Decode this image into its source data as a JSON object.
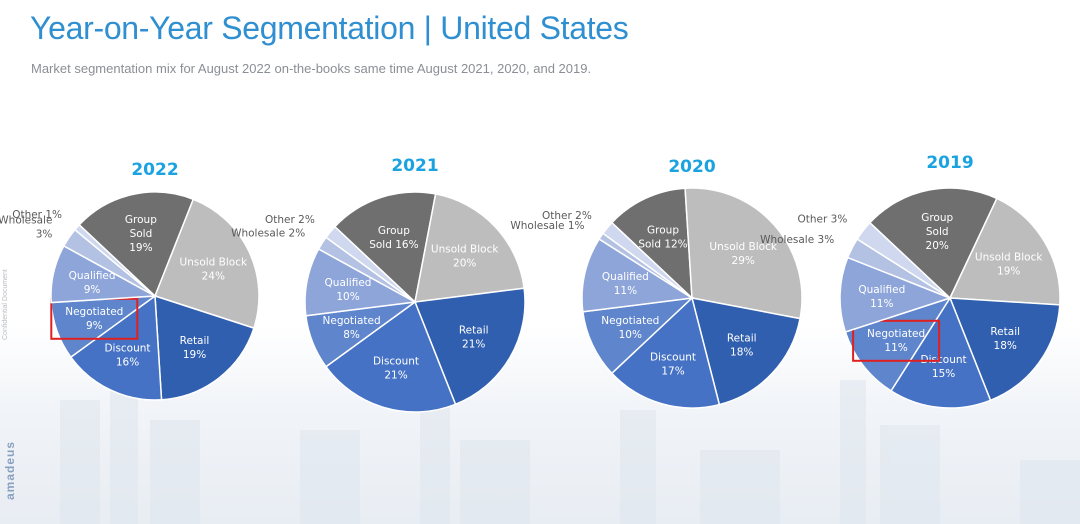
{
  "header": {
    "title": "Year-on-Year Segmentation | United States",
    "subtitle": "Market segmentation mix for August 2022 on-the-books same time August 2021, 2020, and 2019."
  },
  "side_note": "Confidential Document",
  "brand": "amadeus",
  "colors": {
    "title": "#2f8fd0",
    "year_label": "#1aa3e0",
    "highlight_box": "#e02020",
    "Group Sold": "#6f6f6f",
    "Unsold Block": "#bdbdbd",
    "Retail": "#2f5fae",
    "Discount": "#4572c4",
    "Negotiated": "#5f86cc",
    "Qualified": "#8ea5da",
    "Wholesale": "#b3c1e3",
    "Other": "#cfd8ee"
  },
  "chart_data": [
    {
      "type": "pie",
      "title": "2022",
      "highlight": "Negotiated",
      "slices": [
        {
          "label": "Group Sold",
          "display": "Group\nSold\n19%",
          "value": 19
        },
        {
          "label": "Unsold Block",
          "display": "Unsold Block\n24%",
          "value": 24
        },
        {
          "label": "Retail",
          "display": "Retail\n19%",
          "value": 19
        },
        {
          "label": "Discount",
          "display": "Discount\n16%",
          "value": 16
        },
        {
          "label": "Negotiated",
          "display": "Negotiated\n9%",
          "value": 9
        },
        {
          "label": "Qualified",
          "display": "Qualified\n9%",
          "value": 9
        },
        {
          "label": "Wholesale",
          "display": "Wholesale\n3%",
          "value": 3
        },
        {
          "label": "Other",
          "display": "Other 1%",
          "value": 1
        }
      ]
    },
    {
      "type": "pie",
      "title": "2021",
      "highlight": null,
      "slices": [
        {
          "label": "Group Sold",
          "display": "Group\nSold 16%",
          "value": 16
        },
        {
          "label": "Unsold Block",
          "display": "Unsold Block\n20%",
          "value": 20
        },
        {
          "label": "Retail",
          "display": "Retail\n21%",
          "value": 21
        },
        {
          "label": "Discount",
          "display": "Discount\n21%",
          "value": 21
        },
        {
          "label": "Negotiated",
          "display": "Negotiated\n8%",
          "value": 8
        },
        {
          "label": "Qualified",
          "display": "Qualified\n10%",
          "value": 10
        },
        {
          "label": "Wholesale",
          "display": "Wholesale 2%",
          "value": 2
        },
        {
          "label": "Other",
          "display": "Other 2%",
          "value": 2
        }
      ]
    },
    {
      "type": "pie",
      "title": "2020",
      "highlight": null,
      "slices": [
        {
          "label": "Group Sold",
          "display": "Group\nSold 12%",
          "value": 12
        },
        {
          "label": "Unsold Block",
          "display": "Unsold Block\n29%",
          "value": 29
        },
        {
          "label": "Retail",
          "display": "Retail\n18%",
          "value": 18
        },
        {
          "label": "Discount",
          "display": "Discount\n17%",
          "value": 17
        },
        {
          "label": "Negotiated",
          "display": "Negotiated\n10%",
          "value": 10
        },
        {
          "label": "Qualified",
          "display": "Qualified\n11%",
          "value": 11
        },
        {
          "label": "Wholesale",
          "display": "Wholesale 1%",
          "value": 1
        },
        {
          "label": "Other",
          "display": "Other 2%",
          "value": 2
        }
      ]
    },
    {
      "type": "pie",
      "title": "2019",
      "highlight": "Negotiated",
      "slices": [
        {
          "label": "Group Sold",
          "display": "Group\nSold\n20%",
          "value": 20
        },
        {
          "label": "Unsold Block",
          "display": "Unsold Block\n19%",
          "value": 19
        },
        {
          "label": "Retail",
          "display": "Retail\n18%",
          "value": 18
        },
        {
          "label": "Discount",
          "display": "Discount\n15%",
          "value": 15
        },
        {
          "label": "Negotiated",
          "display": "Negotiated\n11%",
          "value": 11
        },
        {
          "label": "Qualified",
          "display": "Qualified\n11%",
          "value": 11
        },
        {
          "label": "Wholesale",
          "display": "Wholesale 3%",
          "value": 3
        },
        {
          "label": "Other",
          "display": "Other 3%",
          "value": 3
        }
      ]
    }
  ]
}
